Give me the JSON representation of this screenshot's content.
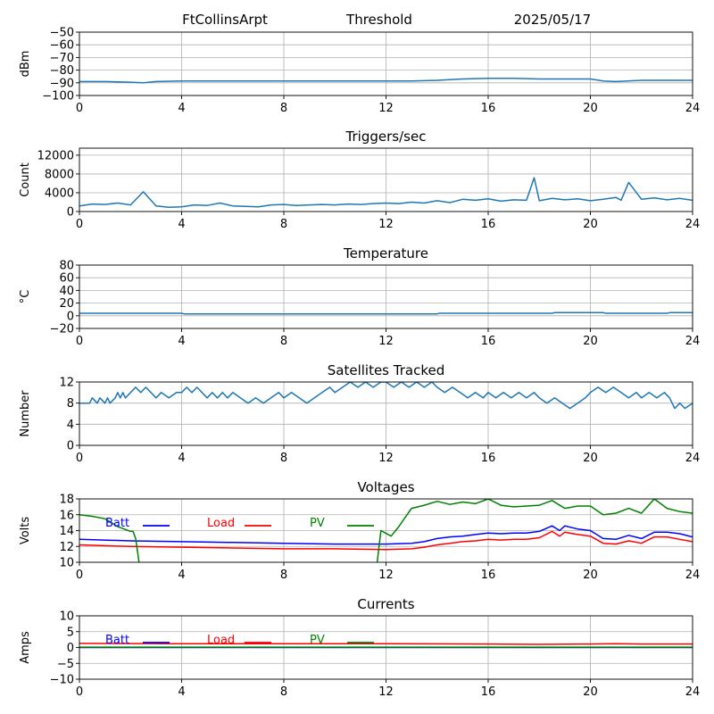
{
  "header": {
    "station": "FtCollinsArpt",
    "mode": "Threshold",
    "date": "2025/05/17"
  },
  "colors": {
    "series": "#1f77b4",
    "batt": "#0000ff",
    "load": "#ff0000",
    "pv": "#008000",
    "grid": "#b0b0b0"
  },
  "chart_data": [
    {
      "id": "threshold",
      "type": "line",
      "title": "",
      "xlabel": "",
      "ylabel": "dBm",
      "xlim": [
        0,
        24
      ],
      "ylim": [
        -100,
        -50
      ],
      "grid": true,
      "xticks": [
        0,
        4,
        8,
        12,
        16,
        20,
        24
      ],
      "yticks": [
        -100,
        -90,
        -80,
        -70,
        -60,
        -50
      ],
      "series": [
        {
          "color": "#1f77b4",
          "x": [
            0,
            1,
            2,
            2.5,
            3,
            4,
            6,
            8,
            10,
            12,
            13,
            14,
            15,
            16,
            17,
            18,
            19,
            20,
            20.5,
            21,
            22,
            23,
            24
          ],
          "y": [
            -89,
            -89,
            -89.5,
            -90,
            -89,
            -88.5,
            -88.5,
            -88.5,
            -88.5,
            -88.5,
            -88.5,
            -88,
            -87,
            -86.5,
            -86.5,
            -87,
            -87,
            -87,
            -88.5,
            -89,
            -88,
            -88,
            -88
          ]
        }
      ]
    },
    {
      "id": "triggers",
      "type": "line",
      "title": "Triggers/sec",
      "xlabel": "",
      "ylabel": "Count",
      "xlim": [
        0,
        24
      ],
      "ylim": [
        0,
        13500
      ],
      "grid": true,
      "xticks": [
        0,
        4,
        8,
        12,
        16,
        20,
        24
      ],
      "yticks": [
        0,
        4000,
        8000,
        12000
      ],
      "series": [
        {
          "color": "#1f77b4",
          "x": [
            0,
            0.5,
            1,
            1.5,
            2,
            2.5,
            3,
            3.5,
            4,
            4.5,
            5,
            5.5,
            6,
            6.5,
            7,
            7.5,
            8,
            8.5,
            9,
            9.5,
            10,
            10.5,
            11,
            11.5,
            12,
            12.5,
            13,
            13.5,
            14,
            14.5,
            15,
            15.5,
            16,
            16.5,
            17,
            17.5,
            17.8,
            18,
            18.5,
            19,
            19.5,
            20,
            20.5,
            21,
            21.2,
            21.5,
            22,
            22.5,
            23,
            23.5,
            24
          ],
          "y": [
            1200,
            1600,
            1500,
            1800,
            1400,
            4200,
            1200,
            900,
            1000,
            1400,
            1300,
            1800,
            1200,
            1100,
            1000,
            1400,
            1500,
            1300,
            1400,
            1500,
            1400,
            1600,
            1500,
            1700,
            1800,
            1700,
            2000,
            1800,
            2300,
            1900,
            2600,
            2400,
            2700,
            2200,
            2500,
            2400,
            7200,
            2300,
            2800,
            2500,
            2700,
            2300,
            2600,
            3000,
            2400,
            6200,
            2600,
            2900,
            2500,
            2800,
            2400
          ]
        }
      ]
    },
    {
      "id": "temperature",
      "type": "line",
      "title": "Temperature",
      "xlabel": "",
      "ylabel": "°C",
      "xlim": [
        0,
        24
      ],
      "ylim": [
        -20,
        80
      ],
      "grid": true,
      "xticks": [
        0,
        4,
        8,
        12,
        16,
        20,
        24
      ],
      "yticks": [
        -20,
        0,
        20,
        40,
        60,
        80
      ],
      "series": [
        {
          "color": "#1f77b4",
          "x": [
            0,
            4,
            4.1,
            14,
            14.1,
            18.5,
            18.6,
            20.5,
            20.6,
            23,
            23.1,
            24
          ],
          "y": [
            4,
            4,
            3,
            3,
            4,
            4,
            5,
            5,
            4,
            4,
            5,
            5
          ]
        }
      ]
    },
    {
      "id": "satellites",
      "type": "line",
      "title": "Satellites Tracked",
      "xlabel": "",
      "ylabel": "Number",
      "xlim": [
        0,
        24
      ],
      "ylim": [
        0,
        12
      ],
      "grid": true,
      "xticks": [
        0,
        4,
        8,
        12,
        16,
        20,
        24
      ],
      "yticks": [
        0,
        4,
        8,
        12
      ],
      "series": [
        {
          "color": "#1f77b4",
          "x": [
            0,
            0.4,
            0.5,
            0.7,
            0.8,
            1,
            1.1,
            1.2,
            1.4,
            1.5,
            1.6,
            1.7,
            1.8,
            2,
            2.2,
            2.4,
            2.6,
            2.8,
            3,
            3.2,
            3.5,
            3.8,
            4,
            4.2,
            4.4,
            4.6,
            4.8,
            5,
            5.2,
            5.4,
            5.6,
            5.8,
            6,
            6.3,
            6.6,
            6.9,
            7.2,
            7.5,
            7.8,
            8,
            8.3,
            8.6,
            8.9,
            9.2,
            9.5,
            9.8,
            10,
            10.3,
            10.6,
            10.9,
            11.2,
            11.5,
            11.8,
            12,
            12.3,
            12.6,
            12.9,
            13.2,
            13.5,
            13.8,
            14,
            14.3,
            14.6,
            14.9,
            15.2,
            15.5,
            15.8,
            16,
            16.3,
            16.6,
            16.9,
            17.2,
            17.5,
            17.8,
            18,
            18.3,
            18.6,
            18.9,
            19.2,
            19.5,
            19.8,
            20,
            20.3,
            20.6,
            20.9,
            21.2,
            21.5,
            21.8,
            22,
            22.3,
            22.6,
            22.9,
            23.1,
            23.3,
            23.5,
            23.7,
            24
          ],
          "y": [
            8,
            8,
            9,
            8,
            9,
            8,
            9,
            8,
            9,
            10,
            9,
            10,
            9,
            10,
            11,
            10,
            11,
            10,
            9,
            10,
            9,
            10,
            10,
            11,
            10,
            11,
            10,
            9,
            10,
            9,
            10,
            9,
            10,
            9,
            8,
            9,
            8,
            9,
            10,
            9,
            10,
            9,
            8,
            9,
            10,
            11,
            10,
            11,
            12,
            11,
            12,
            11,
            12,
            12,
            11,
            12,
            11,
            12,
            11,
            12,
            11,
            10,
            11,
            10,
            9,
            10,
            9,
            10,
            9,
            10,
            9,
            10,
            9,
            10,
            9,
            8,
            9,
            8,
            7,
            8,
            9,
            10,
            11,
            10,
            11,
            10,
            9,
            10,
            9,
            10,
            9,
            10,
            9,
            7,
            8,
            7,
            8
          ]
        }
      ]
    },
    {
      "id": "voltages",
      "type": "line",
      "title": "Voltages",
      "xlabel": "",
      "ylabel": "Volts",
      "xlim": [
        0,
        24
      ],
      "ylim": [
        10,
        18
      ],
      "grid": true,
      "xticks": [
        0,
        4,
        8,
        12,
        16,
        20,
        24
      ],
      "yticks": [
        10,
        12,
        14,
        16,
        18
      ],
      "legend": [
        "Batt",
        "Load",
        "PV"
      ],
      "series": [
        {
          "name": "Batt",
          "color": "#0000ff",
          "x": [
            0,
            2,
            4,
            6,
            8,
            10,
            12,
            13,
            13.5,
            14,
            14.5,
            15,
            15.5,
            16,
            16.5,
            17,
            17.5,
            18,
            18.5,
            18.8,
            19,
            19.5,
            20,
            20.5,
            21,
            21.5,
            22,
            22.5,
            23,
            23.5,
            24
          ],
          "y": [
            12.9,
            12.7,
            12.6,
            12.5,
            12.4,
            12.3,
            12.3,
            12.4,
            12.6,
            13.0,
            13.2,
            13.3,
            13.5,
            13.7,
            13.6,
            13.7,
            13.7,
            13.9,
            14.6,
            14.0,
            14.6,
            14.2,
            14.0,
            13.0,
            12.9,
            13.4,
            13.0,
            13.8,
            13.8,
            13.6,
            13.2
          ]
        },
        {
          "name": "Load",
          "color": "#ff0000",
          "x": [
            0,
            2,
            4,
            6,
            8,
            10,
            12,
            13,
            13.5,
            14,
            14.5,
            15,
            15.5,
            16,
            16.5,
            17,
            17.5,
            18,
            18.5,
            18.8,
            19,
            19.5,
            20,
            20.5,
            21,
            21.5,
            22,
            22.5,
            23,
            23.5,
            24
          ],
          "y": [
            12.2,
            12.0,
            11.9,
            11.8,
            11.7,
            11.7,
            11.6,
            11.7,
            11.9,
            12.2,
            12.4,
            12.6,
            12.7,
            12.9,
            12.8,
            12.9,
            12.9,
            13.1,
            13.9,
            13.3,
            13.8,
            13.5,
            13.3,
            12.4,
            12.3,
            12.7,
            12.4,
            13.2,
            13.2,
            12.9,
            12.6
          ]
        },
        {
          "name": "PV",
          "color": "#008000",
          "x": [
            0,
            0.5,
            1,
            1.5,
            2,
            2.1,
            2.2,
            2.4,
            11.6,
            11.8,
            12.2,
            12.5,
            13,
            13.5,
            14,
            14.5,
            15,
            15.5,
            16,
            16.5,
            17,
            17.5,
            18,
            18.5,
            19,
            19.5,
            20,
            20.5,
            21,
            21.5,
            22,
            22.5,
            23,
            23.5,
            24
          ],
          "y": [
            16.0,
            15.8,
            15.5,
            14.5,
            13.9,
            13.9,
            13.0,
            8.5,
            8.5,
            14.0,
            13.3,
            14.5,
            16.8,
            17.2,
            17.7,
            17.3,
            17.6,
            17.4,
            18.0,
            17.2,
            17.0,
            17.1,
            17.2,
            17.8,
            16.8,
            17.1,
            17.1,
            16.0,
            16.2,
            16.8,
            16.2,
            18.0,
            16.8,
            16.4,
            16.2
          ]
        }
      ]
    },
    {
      "id": "currents",
      "type": "line",
      "title": "Currents",
      "xlabel": "",
      "ylabel": "Amps",
      "xlim": [
        0,
        24
      ],
      "ylim": [
        -10,
        10
      ],
      "grid": true,
      "xticks": [
        0,
        4,
        8,
        12,
        16,
        20,
        24
      ],
      "yticks": [
        -10,
        -5,
        0,
        5,
        10
      ],
      "legend": [
        "Batt",
        "Load",
        "PV"
      ],
      "series": [
        {
          "name": "Batt",
          "color": "#0000ff",
          "x": [
            0,
            24
          ],
          "y": [
            0,
            0
          ]
        },
        {
          "name": "Load",
          "color": "#ff0000",
          "x": [
            0,
            4,
            8,
            12,
            16,
            18,
            20,
            21,
            22,
            24
          ],
          "y": [
            1.3,
            1.2,
            1.2,
            1.2,
            1.1,
            1.0,
            1.1,
            1.2,
            1.1,
            1.1
          ]
        },
        {
          "name": "PV",
          "color": "#008000",
          "x": [
            0,
            24
          ],
          "y": [
            0.1,
            0.1
          ]
        }
      ]
    }
  ]
}
